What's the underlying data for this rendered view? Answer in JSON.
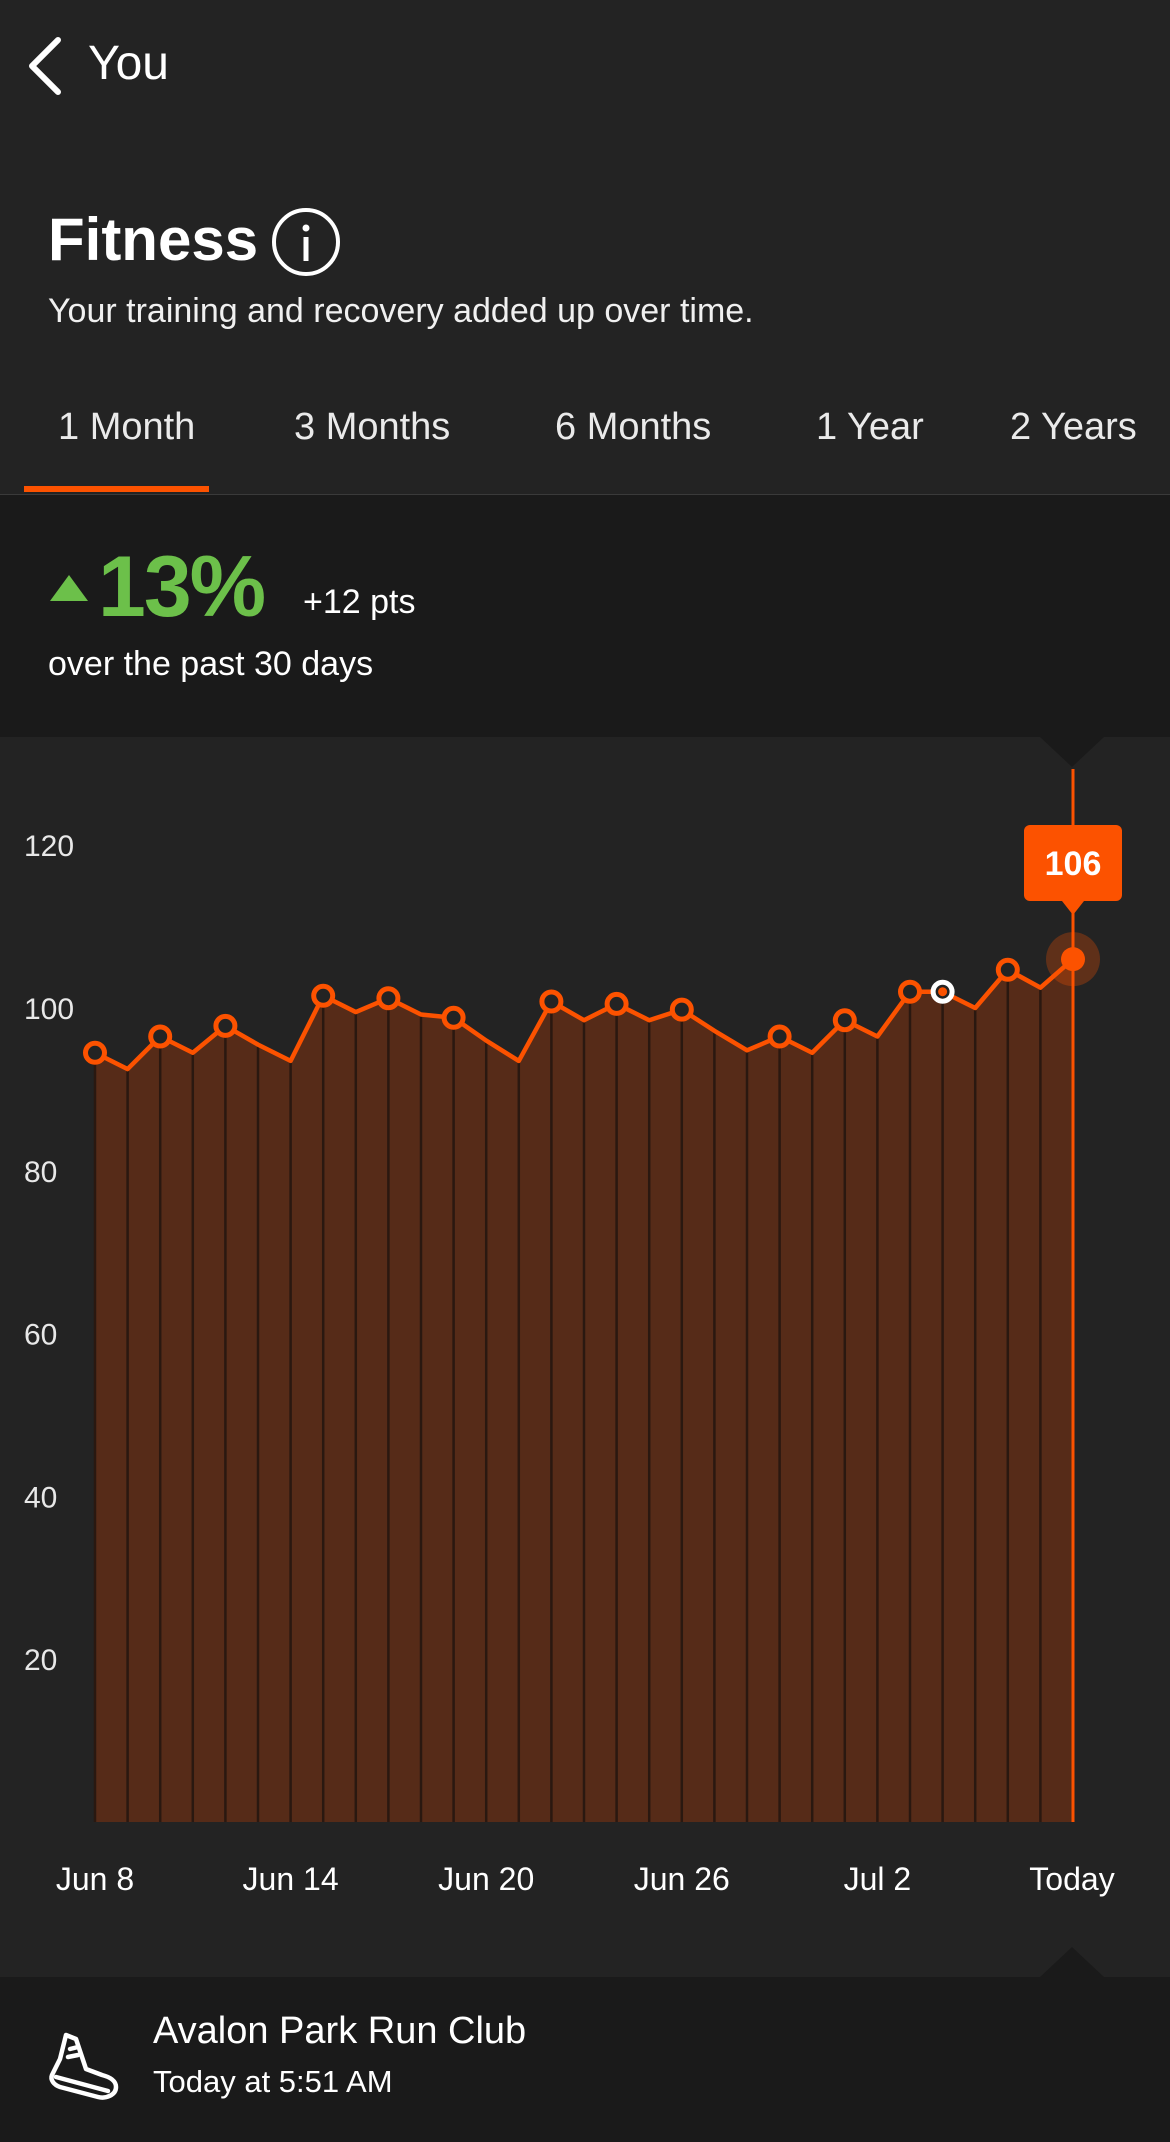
{
  "nav": {
    "back_label": "You"
  },
  "header": {
    "title": "Fitness",
    "subtitle": "Your training and recovery added up over time."
  },
  "tabs": [
    {
      "label": "1 Month",
      "selected": true
    },
    {
      "label": "3 Months",
      "selected": false
    },
    {
      "label": "6 Months",
      "selected": false
    },
    {
      "label": "1 Year",
      "selected": false
    },
    {
      "label": "2 Years",
      "selected": false
    }
  ],
  "summary": {
    "percent": "13%",
    "points": "+12 pts",
    "period": "over the past 30 days"
  },
  "colors": {
    "accent": "#fc5200",
    "positive": "#6cc04a",
    "bar_fill": "#562b18",
    "background": "#232323"
  },
  "chart_data": {
    "type": "area",
    "y_ticks": [
      120,
      100,
      80,
      60,
      40,
      20
    ],
    "ylim": [
      0,
      120
    ],
    "x_tick_labels": [
      "Jun 8",
      "Jun 14",
      "Jun 20",
      "Jun 26",
      "Jul 2",
      "Today"
    ],
    "x_tick_indices": [
      0,
      6,
      12,
      18,
      24,
      30
    ],
    "values": [
      94.5,
      92.5,
      96.5,
      94.5,
      97.8,
      95.5,
      93.5,
      101.5,
      99.5,
      101.2,
      99.2,
      98.8,
      96.0,
      93.5,
      100.8,
      98.5,
      100.5,
      98.5,
      99.8,
      97.2,
      94.8,
      96.5,
      94.5,
      98.5,
      96.5,
      102.0,
      102.0,
      100.0,
      104.7,
      102.5,
      106.0
    ],
    "markers": [
      0,
      2,
      4,
      7,
      9,
      11,
      14,
      16,
      18,
      21,
      23,
      25,
      26,
      28,
      30
    ],
    "highlight_index": 26,
    "selected_index": 30,
    "callout": "106"
  },
  "activity": {
    "name": "Avalon Park Run Club",
    "time": "Today at 5:51 AM",
    "icon": "shoe-icon"
  }
}
